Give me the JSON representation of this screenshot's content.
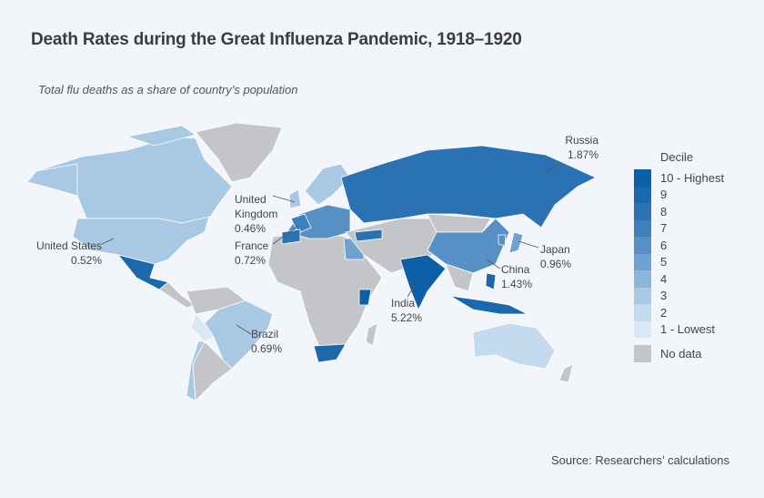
{
  "title": "Death Rates during the Great Influenza Pandemic, 1918–1920",
  "subtitle": "Total flu deaths as a share of country’s population",
  "legend": {
    "title": "Decile",
    "items": [
      {
        "label": "10 - Highest",
        "color": "#0d5fa6"
      },
      {
        "label": "9",
        "color": "#1c68ad"
      },
      {
        "label": "8",
        "color": "#2a72b3"
      },
      {
        "label": "7",
        "color": "#3d80bb"
      },
      {
        "label": "6",
        "color": "#5790c5"
      },
      {
        "label": "5",
        "color": "#6fa2cf"
      },
      {
        "label": "4",
        "color": "#8cb6da"
      },
      {
        "label": "3",
        "color": "#a8c8e4"
      },
      {
        "label": "2",
        "color": "#c4daee"
      },
      {
        "label": "1 - Lowest",
        "color": "#d9e8f4"
      }
    ],
    "no_data": {
      "label": "No data",
      "color": "#c4c5c8"
    }
  },
  "annotations": [
    {
      "country": "Russia",
      "value": "1.87%"
    },
    {
      "country": "United Kingdom",
      "value": "0.46%"
    },
    {
      "country": "France",
      "value": "0.72%"
    },
    {
      "country": "United States",
      "value": "0.52%"
    },
    {
      "country": "Japan",
      "value": "0.96%"
    },
    {
      "country": "China",
      "value": "1.43%"
    },
    {
      "country": "India",
      "value": "5.22%"
    },
    {
      "country": "Brazil",
      "value": "0.69%"
    }
  ],
  "source": "Source: Researchers’ calculations"
}
